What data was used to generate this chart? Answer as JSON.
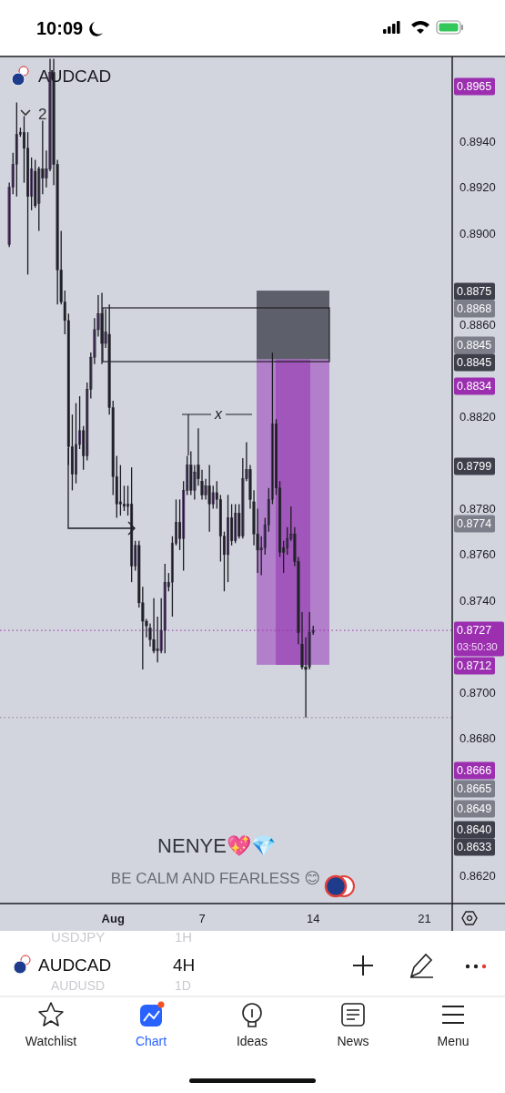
{
  "chart_data": {
    "type": "candlestick",
    "title": "AUDCAD",
    "categories": [
      null,
      null,
      null,
      null,
      null,
      null,
      null,
      null,
      null,
      null,
      null,
      null,
      null,
      null,
      null,
      null,
      null,
      null,
      null,
      null,
      null,
      null,
      null,
      null,
      null,
      null,
      null,
      null,
      null,
      null,
      "Aug",
      null,
      null,
      null,
      null,
      null,
      null,
      null,
      null,
      null,
      null,
      null,
      null,
      null,
      null,
      null,
      null,
      null,
      null,
      null,
      null,
      null,
      null,
      null,
      "7",
      null,
      null,
      null,
      null,
      null,
      null,
      null,
      null,
      null,
      null,
      null,
      null,
      null,
      null,
      null,
      null,
      null,
      null,
      null,
      null,
      null,
      null,
      null,
      null,
      null,
      null,
      null,
      null,
      null,
      "14",
      null,
      null,
      null,
      null,
      null,
      null,
      null,
      null,
      null,
      null,
      null,
      null,
      null,
      null,
      null,
      null,
      null,
      null,
      null,
      null,
      null,
      null,
      null,
      null,
      null,
      null,
      null,
      null,
      null,
      "21",
      null,
      null,
      null,
      null,
      null,
      null,
      null
    ],
    "ohlc": [
      null,
      null,
      [
        0.8895,
        0.8922,
        0.8894,
        0.892
      ],
      [
        0.892,
        0.8935,
        0.8917,
        0.893
      ],
      [
        0.893,
        0.8957,
        0.8916,
        0.8943
      ],
      [
        0.8943,
        0.8946,
        0.8942,
        0.8944
      ],
      [
        0.8944,
        0.8951,
        0.8922,
        0.8937
      ],
      [
        0.8937,
        0.8944,
        0.8882,
        0.8916
      ],
      [
        0.8916,
        0.8933,
        0.891,
        0.8928
      ],
      [
        0.8927,
        0.8932,
        0.8911,
        0.8912
      ],
      [
        0.8913,
        0.8929,
        0.8901,
        0.8928
      ],
      [
        0.8928,
        0.8949,
        0.8917,
        0.8924
      ],
      [
        0.8924,
        0.8936,
        0.892,
        0.8928
      ],
      [
        0.8928,
        0.8976,
        0.8927,
        0.897
      ],
      [
        0.897,
        0.8976,
        0.8921,
        0.893
      ],
      [
        0.893,
        0.8932,
        0.8869,
        0.8884
      ],
      [
        0.8884,
        0.8901,
        0.8869,
        0.887
      ],
      [
        0.887,
        0.8875,
        0.8856,
        0.8862
      ],
      [
        0.8862,
        0.8865,
        0.8799,
        0.8807
      ],
      [
        0.8807,
        0.8821,
        0.8788,
        0.8795
      ],
      [
        0.8795,
        0.8826,
        0.8791,
        0.8808
      ],
      [
        0.8808,
        0.8829,
        0.8806,
        0.8814
      ],
      [
        0.8814,
        0.8816,
        0.8797,
        0.8803
      ],
      [
        0.8803,
        0.8835,
        0.8801,
        0.8832
      ],
      [
        0.8832,
        0.8848,
        0.8828,
        0.8846
      ],
      [
        0.8846,
        0.8863,
        0.8843,
        0.8858
      ],
      [
        0.8858,
        0.8873,
        0.8855,
        0.8865
      ],
      [
        0.8865,
        0.8874,
        0.8843,
        0.8852
      ],
      [
        0.8852,
        0.8867,
        0.885,
        0.8857
      ],
      [
        0.8856,
        0.8869,
        0.8821,
        0.8824
      ],
      [
        0.8824,
        0.8827,
        0.8786,
        0.8794
      ],
      [
        0.8794,
        0.8803,
        0.8776,
        0.8782
      ],
      [
        0.8783,
        0.8799,
        0.8777,
        0.8782
      ],
      [
        0.8782,
        0.879,
        0.8779,
        0.8781
      ],
      [
        0.8781,
        0.879,
        0.8777,
        0.8782
      ],
      [
        0.8782,
        0.8798,
        0.8748,
        0.8755
      ],
      [
        0.8755,
        0.8766,
        0.8753,
        0.8764
      ],
      [
        0.8764,
        0.8766,
        0.8737,
        0.8739
      ],
      [
        0.8739,
        0.8746,
        0.871,
        0.8731
      ],
      [
        0.8731,
        0.8732,
        0.8724,
        0.8729
      ],
      [
        0.8728,
        0.873,
        0.872,
        0.8723
      ],
      [
        0.8723,
        0.8741,
        0.8717,
        0.8718
      ],
      [
        0.8718,
        0.8733,
        0.8713,
        0.8719
      ],
      [
        0.8718,
        0.8741,
        0.8717,
        0.8727
      ],
      [
        0.8727,
        0.8756,
        0.8717,
        0.8748
      ],
      [
        0.8746,
        0.8752,
        0.8744,
        0.8748
      ],
      [
        0.8748,
        0.8768,
        0.8733,
        0.8765
      ],
      [
        0.8765,
        0.8784,
        0.8764,
        0.8774
      ],
      [
        0.8774,
        0.8784,
        0.8762,
        0.8767
      ],
      [
        0.8767,
        0.8792,
        0.8753,
        0.8788
      ],
      [
        0.8788,
        0.8803,
        0.8786,
        0.8799
      ],
      [
        0.8799,
        0.8805,
        0.8786,
        0.8788
      ],
      [
        0.8788,
        0.8799,
        0.8784,
        0.8796
      ],
      [
        0.8799,
        0.8815,
        0.879,
        0.8793
      ],
      [
        0.8792,
        0.8797,
        0.8784,
        0.8786
      ],
      [
        0.8786,
        0.8793,
        0.8784,
        0.879
      ],
      [
        0.879,
        0.8799,
        0.877,
        0.8782
      ],
      [
        0.8782,
        0.879,
        0.878,
        0.8787
      ],
      [
        0.8787,
        0.8792,
        0.878,
        0.8784
      ],
      [
        0.8784,
        0.8786,
        0.8757,
        0.8768
      ],
      [
        0.8768,
        0.877,
        0.8744,
        0.876
      ],
      [
        0.876,
        0.8786,
        0.8748,
        0.8776
      ],
      [
        0.8776,
        0.8782,
        0.8764,
        0.8766
      ],
      [
        0.8766,
        0.8782,
        0.8765,
        0.8778
      ],
      [
        0.8778,
        0.8782,
        0.8767,
        0.8768
      ],
      [
        0.8768,
        0.8802,
        0.8767,
        0.8793
      ],
      [
        0.8793,
        0.8809,
        0.8792,
        0.8797
      ],
      [
        0.8797,
        0.8799,
        0.878,
        0.8784
      ],
      [
        0.8783,
        0.8788,
        0.8764,
        0.8769
      ],
      [
        0.8769,
        0.878,
        0.8752,
        0.8762
      ],
      [
        0.8762,
        0.8768,
        0.8751,
        0.8763
      ],
      [
        0.8763,
        0.8776,
        0.876,
        0.8773
      ],
      [
        0.8773,
        0.8789,
        0.877,
        0.8784
      ],
      [
        0.8784,
        0.8848,
        0.8782,
        0.8817
      ],
      [
        0.8817,
        0.8819,
        0.8786,
        0.8789
      ],
      [
        0.8789,
        0.8792,
        0.8759,
        0.8761
      ],
      [
        0.8763,
        0.8766,
        0.8752,
        0.8761
      ],
      [
        0.8763,
        0.8772,
        0.876,
        0.8767
      ],
      [
        0.8767,
        0.8781,
        0.8766,
        0.8769
      ],
      [
        0.8769,
        0.8772,
        0.8755,
        0.8757
      ],
      [
        0.8757,
        0.8759,
        0.8721,
        0.8726
      ],
      [
        0.8721,
        0.8735,
        0.871,
        0.8711
      ],
      [
        0.8711,
        0.8724,
        0.8689,
        0.871
      ],
      [
        0.8711,
        0.8735,
        0.871,
        0.8726
      ],
      [
        0.8726,
        0.8729,
        0.8725,
        0.8727
      ],
      null,
      null,
      null,
      null,
      null,
      null,
      null,
      null,
      null,
      null,
      null,
      null,
      null,
      null,
      null,
      null,
      null,
      null,
      null,
      null,
      null,
      null,
      null,
      null,
      null,
      null,
      null,
      null,
      null,
      null,
      null,
      null,
      null,
      null,
      null,
      null,
      null
    ],
    "colors": [
      null,
      null,
      "#7b4f9e",
      "#7b4f9e",
      "#7b4f9e",
      "#7b4f9e",
      "#2f2f3a",
      "#2f2f3a",
      "#7b4f9e",
      "#2f2f3a",
      "#7b4f9e",
      "#2f2f3a",
      "#7b4f9e",
      "#7b4f9e",
      "#2f2f3a",
      "#2f2f3a",
      "#2f2f3a",
      "#2f2f3a",
      "#2f2f3a",
      "#2f2f3a",
      "#7b4f9e",
      "#7b4f9e",
      "#2f2f3a",
      "#7b4f9e",
      "#7b4f9e",
      "#7b4f9e",
      "#7b4f9e",
      "#2f2f3a",
      "#7b4f9e",
      "#2f2f3a",
      "#2f2f3a",
      "#2f2f3a",
      "#2f2f3a",
      "#2f2f3a",
      "#7b4f9e",
      "#2f2f3a",
      "#7b4f9e",
      "#2f2f3a",
      "#2f2f3a",
      "#2f2f3a",
      "#2f2f3a",
      "#2f2f3a",
      "#7b4f9e",
      "#7b4f9e",
      "#7b4f9e",
      "#7b4f9e",
      "#7b4f9e",
      "#7b4f9e",
      "#2f2f3a",
      "#7b4f9e",
      "#7b4f9e",
      "#2f2f3a",
      "#7b4f9e",
      "#2f2f3a",
      "#2f2f3a",
      "#7b4f9e",
      "#2f2f3a",
      "#7b4f9e",
      "#2f2f3a",
      "#2f2f3a",
      "#2f2f3a",
      "#7b4f9e",
      "#2f2f3a",
      "#7b4f9e",
      "#2f2f3a",
      "#7b4f9e",
      "#7b4f9e",
      "#2f2f3a",
      "#2f2f3a",
      "#2f2f3a",
      "#7b4f9e",
      "#7b4f9e",
      "#7b4f9e",
      "#7b4f9e",
      "#2f2f3a",
      "#2f2f3a",
      "#2f2f3a",
      "#7b4f9e",
      "#7b4f9e",
      "#2f2f3a",
      "#2f2f3a",
      "#2f2f3a",
      "#2f2f3a",
      "#7b4f9e",
      "#7b4f9e",
      null,
      null,
      null,
      null,
      null,
      null,
      null,
      null,
      null,
      null,
      null,
      null,
      null,
      null,
      null,
      null,
      null,
      null,
      null,
      null,
      null,
      null,
      null,
      null,
      null,
      null,
      null,
      null,
      null,
      null,
      null,
      null,
      null,
      null,
      null,
      null,
      null
    ],
    "ylim": [
      0.8608,
      0.8977
    ],
    "yticks": [
      {
        "value": 0.862,
        "label": "0.8620"
      },
      {
        "value": 0.868,
        "label": "0.8680"
      },
      {
        "value": 0.87,
        "label": "0.8700"
      },
      {
        "value": 0.874,
        "label": "0.8740"
      },
      {
        "value": 0.876,
        "label": "0.8760"
      },
      {
        "value": 0.878,
        "label": "0.8780"
      },
      {
        "value": 0.882,
        "label": "0.8820"
      },
      {
        "value": 0.886,
        "label": "0.8860"
      },
      {
        "value": 0.89,
        "label": "0.8900"
      },
      {
        "value": 0.892,
        "label": "0.8920"
      },
      {
        "value": 0.894,
        "label": "0.8940"
      }
    ],
    "bands": [
      {
        "axis": "y",
        "from": 0.8845,
        "to": 0.8875,
        "color": "#5d5f6a"
      },
      {
        "axis": "y",
        "from": 0.8712,
        "to": 0.8845,
        "color": "#b27fcb"
      },
      {
        "axis": "y",
        "from": 0.8712,
        "to": 0.8845,
        "color": "#a056ba"
      }
    ],
    "ref_lines": [
      {
        "axis": "y",
        "value": 0.8727,
        "label": "0.8727",
        "color": "#9c2fb0",
        "line_style": "dotted"
      },
      {
        "axis": "y",
        "value": 0.8689,
        "color": "#8f7aa0",
        "line_style": "dotted"
      }
    ],
    "annotations": [
      "10:09",
      "2",
      "x",
      "NENYE💖💎",
      "BE CALM AND FEARLESS 😊",
      "03:50:30",
      "0.8965",
      "0.8875",
      "0.8868",
      "0.8845",
      "0.8845",
      "0.8834",
      "0.8799",
      "0.8774",
      "0.8712",
      "0.8666",
      "0.8665",
      "0.8649",
      "0.8640",
      "0.8633",
      "USDJPY",
      "1H",
      "AUDCAD",
      "4H",
      "AUDUSD",
      "1D",
      "Watchlist",
      "Chart",
      "Ideas",
      "News",
      "Menu"
    ]
  }
}
